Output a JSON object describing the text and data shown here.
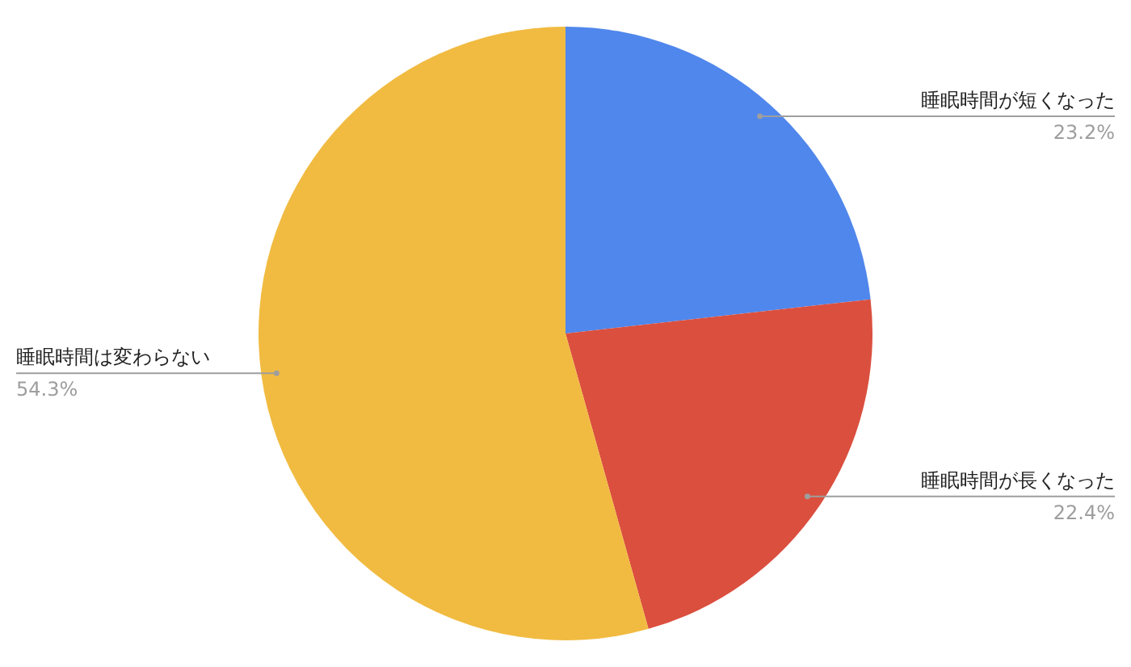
{
  "chart_data": {
    "type": "pie",
    "categories": [
      "睡眠時間が短くなった",
      "睡眠時間が長くなった",
      "睡眠時間は変わらない"
    ],
    "values": [
      23.2,
      22.4,
      54.3
    ],
    "colors": [
      "#5087ec",
      "#db4f3e",
      "#f1bb41"
    ],
    "value_labels": [
      "23.2%",
      "22.4%",
      "54.3%"
    ]
  }
}
